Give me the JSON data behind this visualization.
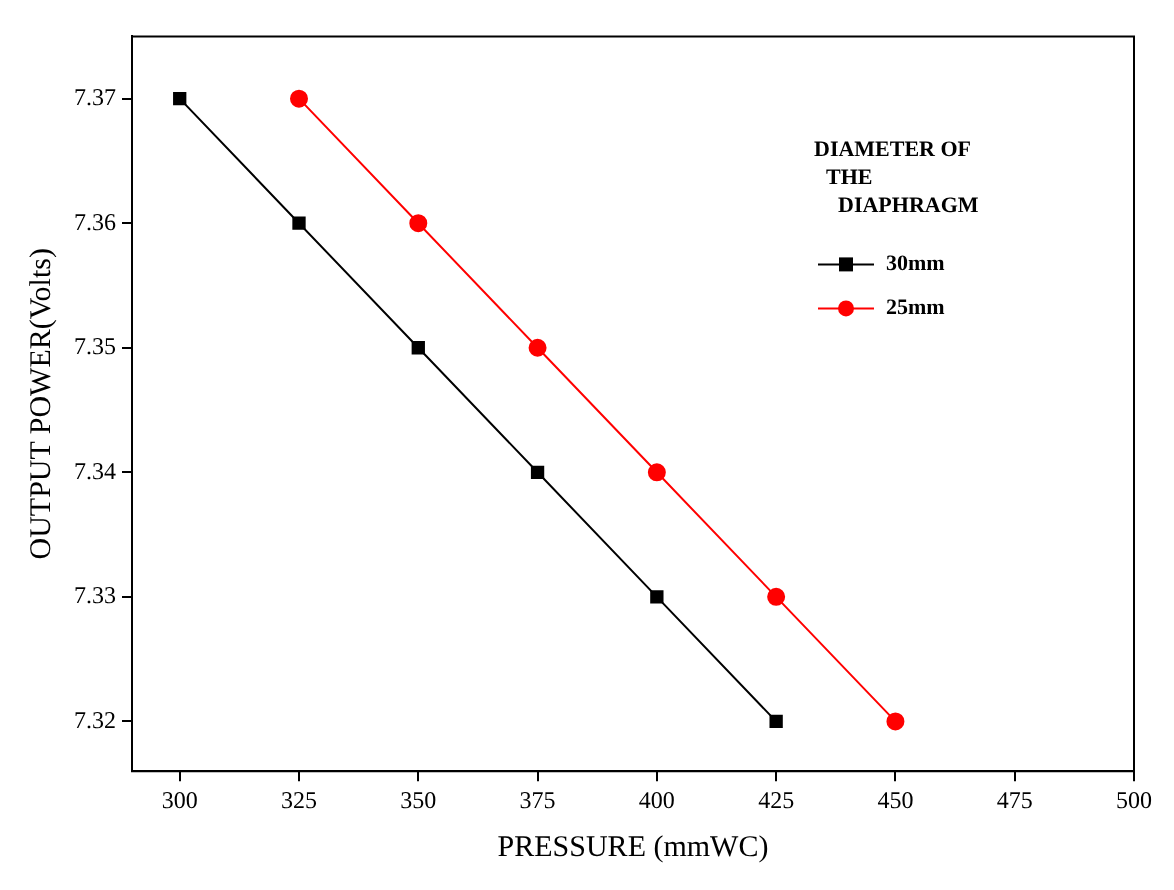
{
  "chart_data": {
    "type": "line",
    "xlabel": "PRESSURE (mmWC)",
    "ylabel": "OUTPUT POWER(Volts)",
    "legend_title": "DIAMETER OF THE DIAPHRAGM",
    "legend": "top right",
    "grid": false,
    "line_style": "solid",
    "xlim": [
      290,
      500
    ],
    "xticks": [
      300,
      325,
      350,
      375,
      400,
      425,
      450,
      475,
      500
    ],
    "ylim": [
      7.316,
      7.375
    ],
    "yticks": [
      7.32,
      7.33,
      7.34,
      7.35,
      7.36,
      7.37
    ],
    "series": [
      {
        "name": "30mm",
        "color": "#000000",
        "marker": "square",
        "x": [
          300,
          325,
          350,
          375,
          400,
          425
        ],
        "values": [
          7.37,
          7.36,
          7.35,
          7.34,
          7.33,
          7.32
        ]
      },
      {
        "name": "25mm",
        "color": "#ff0000",
        "marker": "circle",
        "x": [
          325,
          350,
          375,
          400,
          425,
          450
        ],
        "values": [
          7.37,
          7.36,
          7.35,
          7.34,
          7.33,
          7.32
        ]
      }
    ]
  }
}
